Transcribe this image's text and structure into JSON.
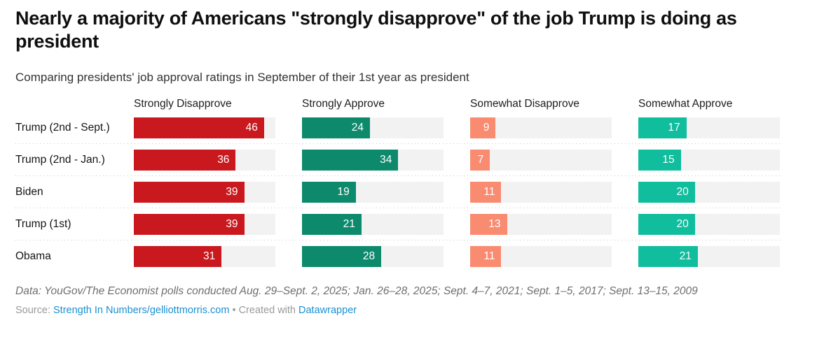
{
  "chart_data": {
    "type": "bar",
    "orientation": "horizontal",
    "title": "Nearly a majority of Americans \"strongly disapprove\" of the job Trump is doing as president",
    "subtitle": "Comparing presidents' job approval ratings in September of their 1st year as president",
    "categories": [
      "Trump (2nd - Sept.)",
      "Trump (2nd - Jan.)",
      "Biden",
      "Trump (1st)",
      "Obama"
    ],
    "series": [
      {
        "name": "Strongly Disapprove",
        "color": "#c9191e",
        "values": [
          46,
          36,
          39,
          39,
          31
        ]
      },
      {
        "name": "Strongly Approve",
        "color": "#0d8a6c",
        "values": [
          24,
          34,
          19,
          21,
          28
        ]
      },
      {
        "name": "Somewhat Disapprove",
        "color": "#f98b71",
        "values": [
          9,
          7,
          11,
          13,
          11
        ]
      },
      {
        "name": "Somewhat Approve",
        "color": "#10bd9d",
        "values": [
          17,
          15,
          20,
          20,
          21
        ]
      }
    ],
    "xmax": 50,
    "track_color": "#f2f2f2",
    "value_labels": "inside-end, white",
    "grid": "off",
    "legend_position": "column headers above bars"
  },
  "footer": {
    "notes": "Data: YouGov/The Economist polls conducted Aug. 29–Sept. 2, 2025; Jan. 26–28, 2025; Sept. 4–7, 2021; Sept. 1–5, 2017; Sept. 13–15, 2009",
    "source_label": "Source:",
    "source_link": "Strength In Numbers/gelliottmorris.com",
    "separator": "•",
    "created_with_label": "Created with",
    "created_with_link": "Datawrapper",
    "link_color": "#1b90d2"
  }
}
